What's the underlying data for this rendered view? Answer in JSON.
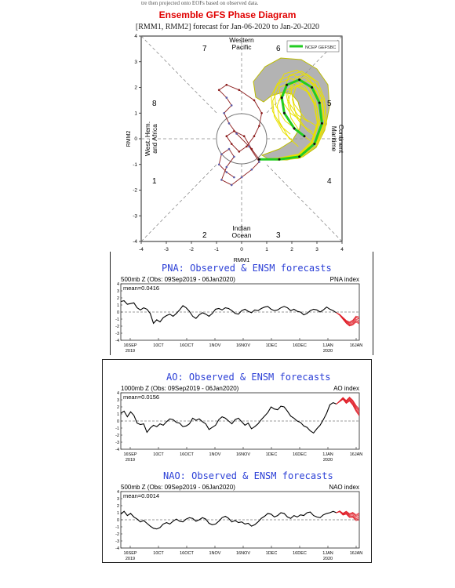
{
  "mjo": {
    "top_cut": "tre then projected onto EOFs based on observed data.",
    "title": "Ensemble GFS Phase Diagram",
    "subtitle": "[RMM1, RMM2] forecast for Jan-06-2020 to Jan-20-2020",
    "legend_label": "NCEP GEFSBC",
    "regions": {
      "top": [
        "Western",
        "Pacific"
      ],
      "bottom": [
        "Indian",
        "Ocean"
      ],
      "left": [
        "West. Hem.",
        "and Africa"
      ],
      "right": [
        "Maritime",
        "Continent"
      ]
    },
    "phases": [
      "1",
      "2",
      "3",
      "4",
      "5",
      "6",
      "7",
      "8"
    ],
    "xlabel": "RMM1",
    "ylabel": "RMM2",
    "ticks": [
      "-4",
      "-3",
      "-2",
      "-1",
      "0",
      "1",
      "2",
      "3",
      "4"
    ],
    "colors": {
      "observed": "#8b1a1a",
      "forecast_mean": "#22cc22",
      "members": "#e8e000",
      "spread": "#9a9a9a",
      "early_obs": "#5c5ca8"
    }
  },
  "panels": [
    {
      "title": "PNA: Observed & ENSM forecasts",
      "header_left": "500mb Z (Obs: 09Sep2019 - 06Jan2020)",
      "header_right": "PNA index",
      "mean": "mean=0.0416"
    },
    {
      "title": "AO: Observed & ENSM forecasts",
      "header_left": "1000mb Z (Obs: 09Sep2019 - 06Jan2020)",
      "header_right": "AO index",
      "mean": "mean=0.0156"
    },
    {
      "title": "NAO: Observed & ENSM forecasts",
      "header_left": "500mb Z (Obs: 09Sep2019 - 06Jan2020)",
      "header_right": "NAO index",
      "mean": "mean=0.0014"
    }
  ],
  "index_axis": {
    "yticks": [
      "4",
      "3",
      "2",
      "1",
      "0",
      "-1",
      "-2",
      "-3",
      "-4"
    ],
    "xticks": [
      "16SEP",
      "10CT",
      "16OCT",
      "1NOV",
      "16NOV",
      "1DEC",
      "16DEC",
      "1JAN",
      "16JAN"
    ],
    "year_labels": [
      "2019",
      "2020"
    ]
  },
  "chart_data": [
    {
      "type": "scatter",
      "title": "Ensemble GFS Phase Diagram",
      "subtitle": "[RMM1, RMM2] forecast for Jan-06-2020 to Jan-20-2020",
      "xlabel": "RMM1",
      "ylabel": "RMM2",
      "xlim": [
        -4,
        4
      ],
      "ylim": [
        -4,
        4
      ],
      "series": [
        {
          "name": "observed",
          "x": [
            -0.3,
            -0.6,
            -0.9,
            -0.8,
            -0.5,
            -0.3,
            -0.6,
            -0.8,
            -0.4,
            0.0,
            0.4,
            0.7,
            0.3,
            -0.2,
            -0.5,
            -0.7,
            -0.4,
            -0.6,
            -0.9,
            -0.6,
            -0.1,
            0.5,
            0.8,
            0.7,
            0.5,
            0.2,
            -0.1,
            -0.4,
            -0.6,
            -0.3,
            0.1,
            0.4,
            0.7
          ],
          "y": [
            -1.5,
            -1.3,
            -1.0,
            -0.6,
            -0.4,
            -0.7,
            -1.1,
            -1.6,
            -1.8,
            -1.5,
            -1.2,
            -0.9,
            -0.3,
            0.2,
            0.6,
            1.0,
            1.3,
            1.6,
            1.9,
            2.1,
            1.9,
            1.5,
            1.0,
            0.5,
            0.1,
            -0.3,
            -0.5,
            -0.2,
            0.1,
            0.3,
            0.1,
            -0.4,
            -0.8
          ]
        },
        {
          "name": "NCEP GEFSBC",
          "x": [
            0.7,
            1.5,
            2.3,
            2.9,
            3.2,
            3.1,
            2.8,
            2.3,
            1.8,
            1.6,
            1.7,
            2.1,
            2.5
          ],
          "y": [
            -0.8,
            -0.8,
            -0.7,
            -0.2,
            0.6,
            1.4,
            2.0,
            2.3,
            2.1,
            1.6,
            1.0,
            0.4,
            0.1
          ]
        }
      ]
    },
    {
      "type": "line",
      "title": "PNA: Observed & ENSM forecasts",
      "ylabel": "PNA index",
      "ylim": [
        -4,
        4
      ],
      "x_start": "09Sep2019",
      "x_end": "20Jan2020",
      "series": [
        {
          "name": "observed",
          "values": [
            1.5,
            1.6,
            1.1,
            1.2,
            1.3,
            0.6,
            0.3,
            0.6,
            0.4,
            -0.2,
            -1.6,
            -1.1,
            -1.4,
            -0.8,
            -0.5,
            -0.3,
            -0.6,
            -0.2,
            0.3,
            0.9,
            0.6,
            0.1,
            -0.6,
            -0.9,
            -0.4,
            -0.1,
            -0.3,
            -0.6,
            -0.2,
            0.4,
            0.5,
            0.3,
            0.6,
            0.5,
            0.2,
            -0.2,
            -0.3,
            0.2,
            0.4,
            0.1,
            -0.1,
            0.3,
            0.2,
            0.5,
            0.7,
            0.8,
            0.4,
            0.2,
            0.3,
            0.6,
            0.8,
            0.6,
            0.2,
            0.4,
            0.1,
            0.0,
            -0.4,
            -0.2,
            0.2,
            0.4,
            0.3,
            0.0,
            0.3,
            0.7,
            0.4,
            0.2,
            -0.1
          ]
        },
        {
          "name": "forecast",
          "values": [
            -0.1,
            -0.4,
            -0.9,
            -1.4,
            -1.7,
            -1.5,
            -1.0,
            -1.2
          ]
        }
      ]
    },
    {
      "type": "line",
      "title": "AO: Observed & ENSM forecasts",
      "ylabel": "AO index",
      "ylim": [
        -4,
        4
      ],
      "x_start": "09Sep2019",
      "x_end": "20Jan2020",
      "series": [
        {
          "name": "observed",
          "values": [
            1.1,
            1.4,
            0.6,
            1.3,
            0.8,
            -0.3,
            -0.5,
            -0.4,
            -1.6,
            -1.0,
            -0.6,
            -0.8,
            -0.4,
            -0.6,
            -0.1,
            0.3,
            0.2,
            -0.2,
            -0.3,
            -0.8,
            -0.7,
            -0.4,
            0.4,
            0.1,
            0.3,
            -0.1,
            -0.4,
            -1.2,
            -0.9,
            -0.6,
            0.2,
            0.6,
            0.4,
            0.0,
            -0.4,
            0.2,
            0.4,
            -0.1,
            -0.6,
            -0.3,
            -1.1,
            -0.8,
            -0.4,
            0.2,
            0.7,
            1.2,
            2.0,
            1.7,
            1.6,
            2.1,
            2.0,
            1.4,
            0.7,
            0.4,
            0.0,
            -0.2,
            -0.7,
            -0.9,
            -1.4,
            -1.7,
            -1.1,
            -0.6,
            0.2,
            1.1,
            2.3,
            2.6,
            2.4
          ]
        },
        {
          "name": "forecast",
          "values": [
            2.4,
            2.8,
            3.2,
            2.7,
            3.1,
            2.6,
            1.8,
            1.2
          ]
        }
      ]
    },
    {
      "type": "line",
      "title": "NAO: Observed & ENSM forecasts",
      "ylabel": "NAO index",
      "ylim": [
        -4,
        4
      ],
      "x_start": "09Sep2019",
      "x_end": "20Jan2020",
      "series": [
        {
          "name": "observed",
          "values": [
            0.8,
            1.2,
            0.6,
            0.9,
            0.4,
            0.1,
            -0.3,
            -0.1,
            -0.5,
            -0.9,
            -1.2,
            -1.3,
            -1.1,
            -0.6,
            -0.4,
            -0.6,
            -0.2,
            0.1,
            -0.2,
            -0.3,
            0.1,
            0.3,
            0.2,
            -0.2,
            0.0,
            0.3,
            0.1,
            -0.5,
            -0.7,
            -0.6,
            -0.2,
            0.3,
            0.5,
            0.2,
            -0.3,
            -0.1,
            -0.4,
            -0.3,
            -0.6,
            -0.5,
            -0.9,
            -0.7,
            -0.3,
            0.2,
            0.5,
            0.9,
            0.8,
            0.4,
            0.6,
            1.0,
            0.9,
            0.4,
            0.2,
            0.6,
            0.4,
            0.7,
            0.6,
            1.0,
            1.1,
            0.6,
            0.4,
            0.3,
            0.7,
            0.9,
            1.0,
            1.2,
            1.0
          ]
        },
        {
          "name": "forecast",
          "values": [
            1.0,
            1.2,
            0.8,
            1.0,
            0.6,
            0.7,
            0.3,
            0.5
          ]
        }
      ]
    }
  ]
}
